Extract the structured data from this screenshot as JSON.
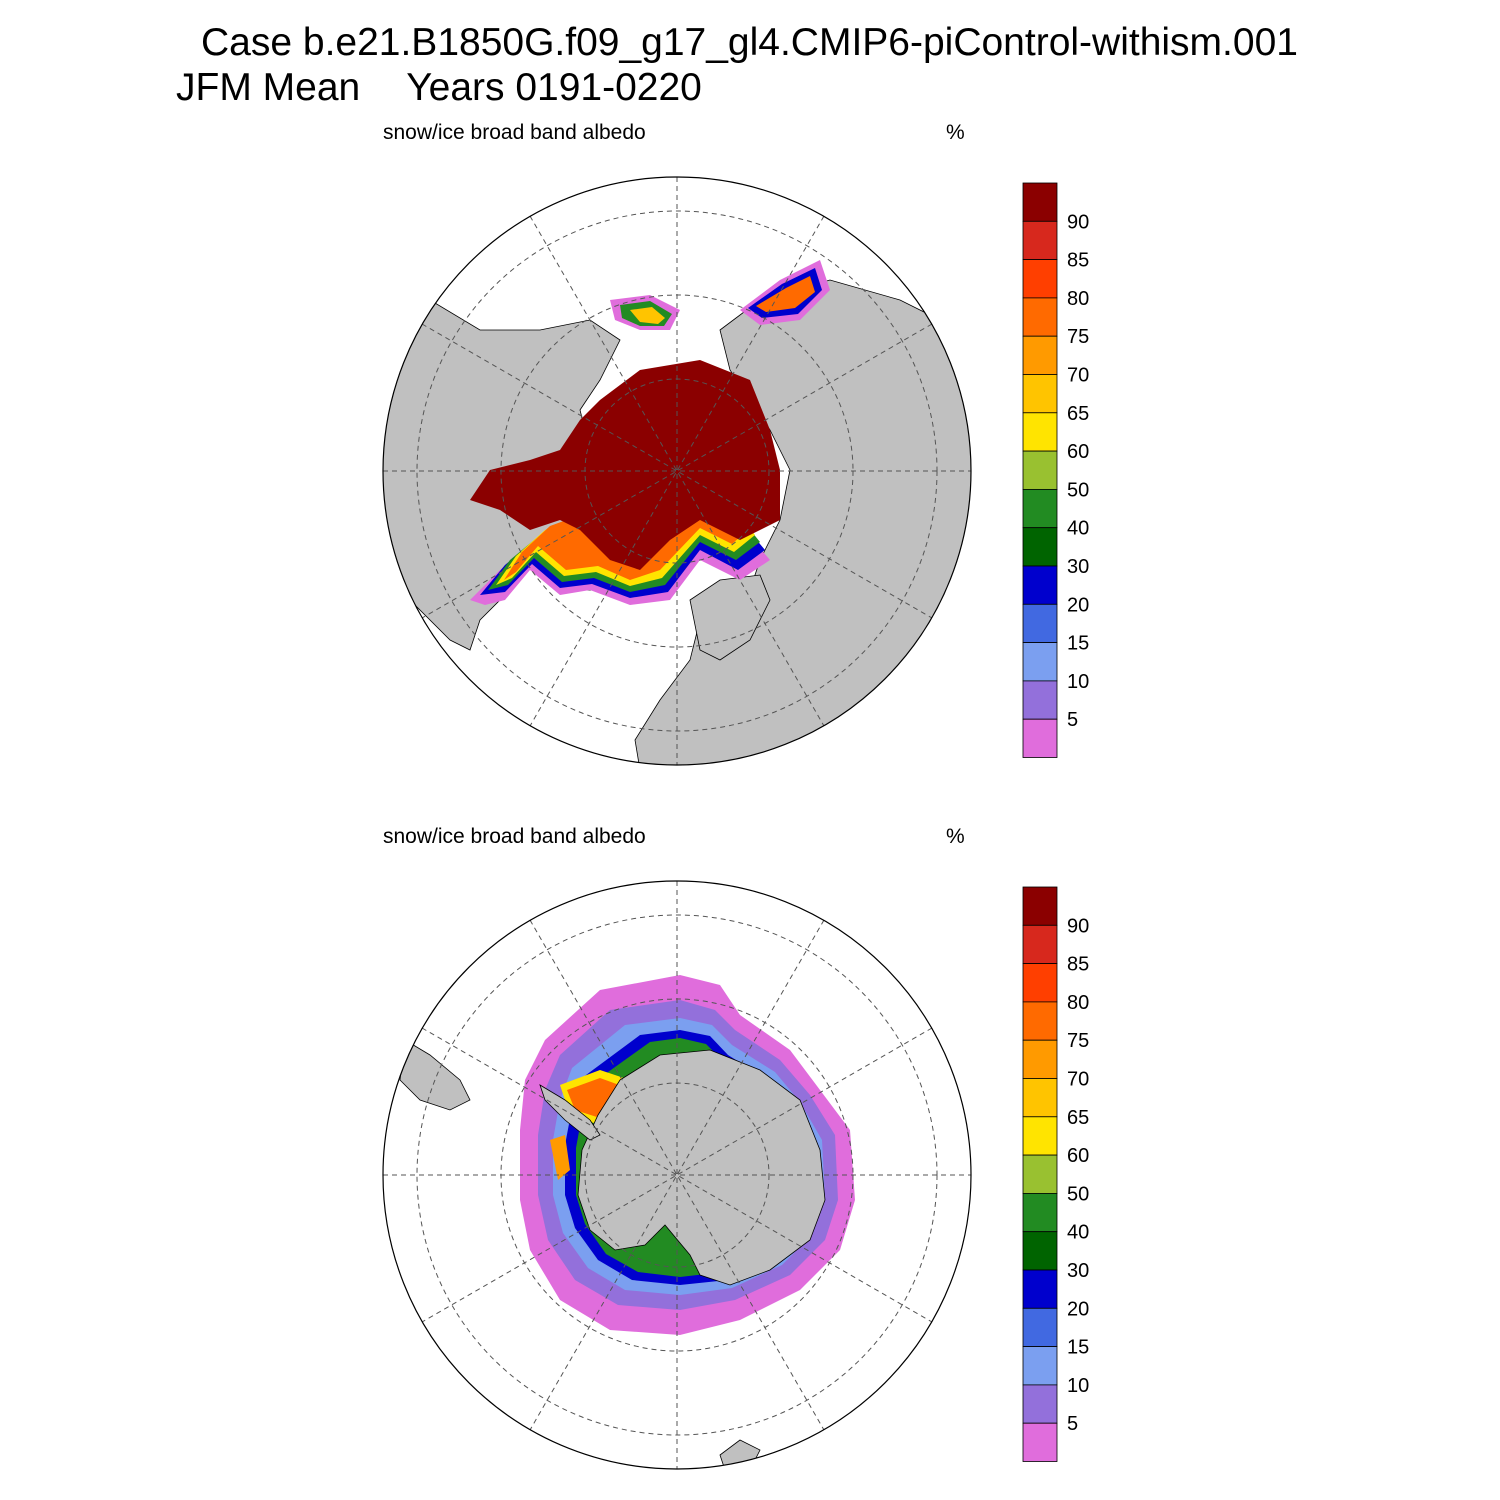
{
  "header": {
    "case_label": "Case b.e21.B1850G.f09_g17_gl4.CMIP6-piControl-withism.001",
    "season": "JFM Mean",
    "years": "Years 0191-0220"
  },
  "panels": [
    {
      "id": "north",
      "variable": "snow/ice broad band albedo",
      "units": "%",
      "hemisphere": "Northern Hemisphere polar stereographic"
    },
    {
      "id": "south",
      "variable": "snow/ice broad band albedo",
      "units": "%",
      "hemisphere": "Southern Hemisphere polar stereographic"
    }
  ],
  "colorbar": {
    "levels": [
      "90",
      "85",
      "80",
      "75",
      "70",
      "65",
      "60",
      "50",
      "40",
      "30",
      "20",
      "15",
      "10",
      "5"
    ],
    "colors_top_to_bottom": [
      "#8b0000",
      "#d7281d",
      "#ff3f00",
      "#ff6a00",
      "#ff9a00",
      "#ffc400",
      "#ffe400",
      "#99c130",
      "#228b22",
      "#006400",
      "#0000cd",
      "#4169e1",
      "#7b9ff0",
      "#9370db",
      "#e06ddc"
    ]
  },
  "colors": {
    "land": "#c0c0c0",
    "ocean": "#ffffff",
    "grid": "#555555"
  }
}
